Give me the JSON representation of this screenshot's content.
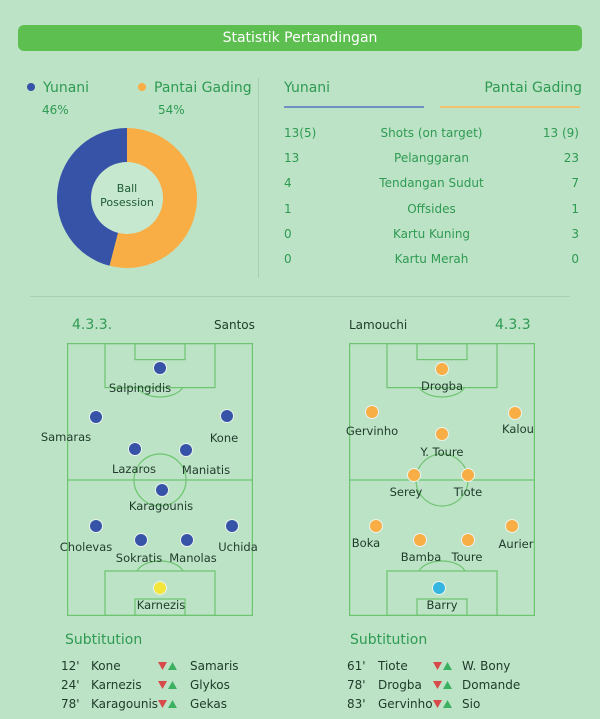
{
  "header": {
    "title": "Statistik Pertandingan"
  },
  "possession": {
    "center_line1": "Ball",
    "center_line2": "Posession",
    "teams": [
      {
        "name": "Yunani",
        "percent_label": "46%",
        "value": 46,
        "color": "#3653a8"
      },
      {
        "name": "Pantai Gading",
        "percent_label": "54%",
        "value": 54,
        "color": "#f8ad45"
      }
    ]
  },
  "stats": {
    "home": "Yunani",
    "away": "Pantai Gading",
    "rows": [
      {
        "home": "13(5)",
        "label": "Shots (on target)",
        "away": "13 (9)"
      },
      {
        "home": "13",
        "label": "Pelanggaran",
        "away": "23"
      },
      {
        "home": "4",
        "label": "Tendangan Sudut",
        "away": "7"
      },
      {
        "home": "1",
        "label": "Offsides",
        "away": "1"
      },
      {
        "home": "0",
        "label": "Kartu Kuning",
        "away": "3"
      },
      {
        "home": "0",
        "label": "Kartu Merah",
        "away": "0"
      }
    ]
  },
  "lineups": {
    "home": {
      "formation": "4.3.3.",
      "coach": "Santos",
      "color": "#3653a8",
      "keeper_color": "#f4e53a",
      "players": [
        "Salpingidis",
        "Samaras",
        "Kone",
        "Lazaros",
        "Maniatis",
        "Karagounis",
        "Cholevas",
        "Sokratis",
        "Manolas",
        "Uchida",
        "Karnezis"
      ]
    },
    "away": {
      "formation": "4.3.3",
      "coach": "Lamouchi",
      "color": "#f8ad45",
      "keeper_color": "#35b6e0",
      "players": [
        "Drogba",
        "Gervinho",
        "Kalou",
        "Y. Toure",
        "Serey",
        "Tiote",
        "Boka",
        "Bamba",
        "Toure",
        "Aurier",
        "Barry"
      ]
    }
  },
  "substitutions": {
    "home_title": "Subtitution",
    "away_title": "Subtitution",
    "home": [
      {
        "minute": "12'",
        "out": "Kone",
        "in": "Samaris"
      },
      {
        "minute": "24'",
        "out": "Karnezis",
        "in": "Glykos"
      },
      {
        "minute": "78'",
        "out": "Karagounis",
        "in": "Gekas"
      }
    ],
    "away": [
      {
        "minute": "61'",
        "out": "Tiote",
        "in": "W. Bony"
      },
      {
        "minute": "78'",
        "out": "Drogba",
        "in": "Domande"
      },
      {
        "minute": "83'",
        "out": "Gervinho",
        "in": "Sio"
      }
    ]
  }
}
